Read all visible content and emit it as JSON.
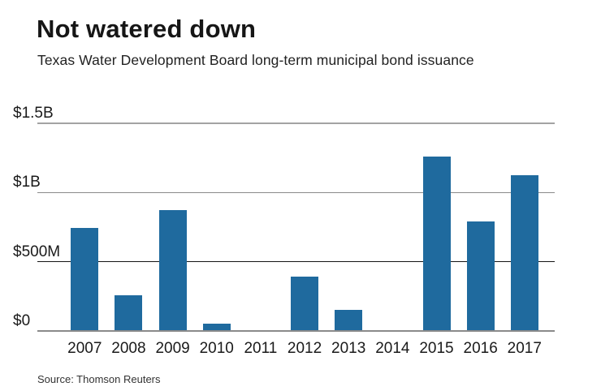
{
  "header": {
    "title": "Not watered down",
    "subtitle": "Texas Water Development Board long-term municipal bond issuance"
  },
  "source": {
    "label": "Source: Thomson Reuters"
  },
  "chart_data": {
    "type": "bar",
    "title": "Not watered down",
    "subtitle": "Texas Water Development Board long-term municipal bond issuance",
    "source": "Source: Thomson Reuters",
    "categories": [
      "2007",
      "2008",
      "2009",
      "2010",
      "2011",
      "2012",
      "2013",
      "2014",
      "2015",
      "2016",
      "2017"
    ],
    "values": [
      740,
      255,
      870,
      50,
      0,
      390,
      150,
      0,
      1255,
      790,
      1125
    ],
    "unit": "millions USD",
    "xlabel": "",
    "ylabel": "",
    "ylim": [
      0,
      1500
    ],
    "grid": "horizontal",
    "legend": "none",
    "bar_color": "#1f6a9e",
    "yticks": [
      {
        "label": "$0",
        "value": 0
      },
      {
        "label": "$500M",
        "value": 500
      },
      {
        "label": "$1B",
        "value": 1000
      },
      {
        "label": "$1.5B",
        "value": 1500
      }
    ],
    "style": {
      "gridlines": {
        "$0": {
          "color": "#8a8a8a",
          "weight": 2
        },
        "$500M": {
          "color": "#141414",
          "weight": 1
        },
        "$1B": {
          "color": "#8a8a8a",
          "weight": 1
        },
        "$1.5B": {
          "color": "#a3a3a3",
          "weight": 2
        }
      },
      "text_color": "#1a1a1a",
      "background": "#ffffff"
    }
  }
}
